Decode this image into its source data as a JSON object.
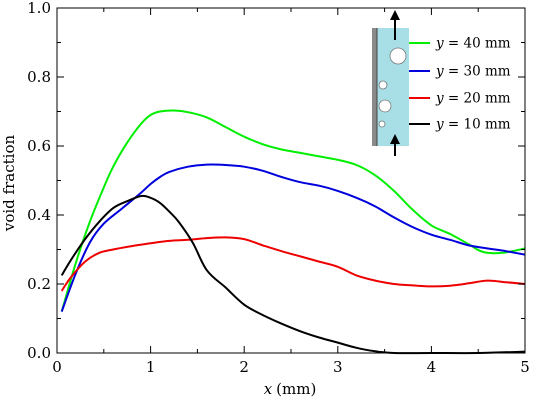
{
  "chart_data": {
    "type": "line",
    "xlabel_var": "x",
    "xlabel_unit": "(mm)",
    "ylabel": "void fraction",
    "xlim": [
      0,
      5
    ],
    "ylim": [
      0,
      1.0
    ],
    "xticks": [
      0,
      1,
      2,
      3,
      4,
      5
    ],
    "yticks": [
      0.0,
      0.2,
      0.4,
      0.6,
      0.8,
      1.0
    ],
    "xtick_labels": [
      "0",
      "1",
      "2",
      "3",
      "4",
      "5"
    ],
    "ytick_labels": [
      "0.0",
      "0.2",
      "0.4",
      "0.6",
      "0.8",
      "1.0"
    ],
    "grid": false,
    "legend_position": "top-right",
    "legend_var": "y",
    "series": [
      {
        "name": "40 mm",
        "color": "#00ee00",
        "points": [
          [
            0.05,
            0.12
          ],
          [
            0.2,
            0.26
          ],
          [
            0.35,
            0.38
          ],
          [
            0.5,
            0.48
          ],
          [
            0.6,
            0.54
          ],
          [
            0.75,
            0.61
          ],
          [
            0.9,
            0.665
          ],
          [
            1.0,
            0.69
          ],
          [
            1.1,
            0.7
          ],
          [
            1.25,
            0.703
          ],
          [
            1.4,
            0.698
          ],
          [
            1.6,
            0.683
          ],
          [
            1.8,
            0.655
          ],
          [
            2.0,
            0.627
          ],
          [
            2.2,
            0.605
          ],
          [
            2.4,
            0.59
          ],
          [
            2.6,
            0.58
          ],
          [
            2.8,
            0.57
          ],
          [
            3.0,
            0.56
          ],
          [
            3.2,
            0.545
          ],
          [
            3.4,
            0.515
          ],
          [
            3.6,
            0.47
          ],
          [
            3.8,
            0.415
          ],
          [
            4.0,
            0.37
          ],
          [
            4.2,
            0.345
          ],
          [
            4.4,
            0.315
          ],
          [
            4.55,
            0.293
          ],
          [
            4.75,
            0.29
          ],
          [
            5.0,
            0.303
          ]
        ]
      },
      {
        "name": "30 mm",
        "color": "#0000dd",
        "points": [
          [
            0.05,
            0.12
          ],
          [
            0.2,
            0.23
          ],
          [
            0.35,
            0.32
          ],
          [
            0.5,
            0.375
          ],
          [
            0.7,
            0.42
          ],
          [
            0.9,
            0.465
          ],
          [
            1.0,
            0.49
          ],
          [
            1.1,
            0.51
          ],
          [
            1.2,
            0.525
          ],
          [
            1.4,
            0.54
          ],
          [
            1.6,
            0.546
          ],
          [
            1.8,
            0.545
          ],
          [
            2.0,
            0.54
          ],
          [
            2.2,
            0.528
          ],
          [
            2.4,
            0.51
          ],
          [
            2.6,
            0.495
          ],
          [
            2.8,
            0.485
          ],
          [
            3.0,
            0.47
          ],
          [
            3.2,
            0.45
          ],
          [
            3.4,
            0.425
          ],
          [
            3.6,
            0.393
          ],
          [
            3.8,
            0.365
          ],
          [
            4.0,
            0.343
          ],
          [
            4.2,
            0.328
          ],
          [
            4.4,
            0.312
          ],
          [
            4.6,
            0.303
          ],
          [
            4.8,
            0.295
          ],
          [
            5.0,
            0.285
          ]
        ]
      },
      {
        "name": "20 mm",
        "color": "#ee0000",
        "points": [
          [
            0.05,
            0.18
          ],
          [
            0.15,
            0.22
          ],
          [
            0.3,
            0.265
          ],
          [
            0.45,
            0.29
          ],
          [
            0.6,
            0.3
          ],
          [
            0.8,
            0.31
          ],
          [
            1.0,
            0.318
          ],
          [
            1.2,
            0.325
          ],
          [
            1.4,
            0.328
          ],
          [
            1.6,
            0.333
          ],
          [
            1.8,
            0.335
          ],
          [
            2.0,
            0.33
          ],
          [
            2.2,
            0.312
          ],
          [
            2.4,
            0.295
          ],
          [
            2.6,
            0.28
          ],
          [
            2.8,
            0.265
          ],
          [
            3.0,
            0.25
          ],
          [
            3.2,
            0.225
          ],
          [
            3.4,
            0.21
          ],
          [
            3.6,
            0.2
          ],
          [
            3.8,
            0.196
          ],
          [
            4.0,
            0.193
          ],
          [
            4.2,
            0.195
          ],
          [
            4.4,
            0.202
          ],
          [
            4.6,
            0.21
          ],
          [
            4.8,
            0.205
          ],
          [
            5.0,
            0.2
          ]
        ]
      },
      {
        "name": "10 mm",
        "color": "#000000",
        "points": [
          [
            0.05,
            0.225
          ],
          [
            0.15,
            0.27
          ],
          [
            0.3,
            0.33
          ],
          [
            0.45,
            0.38
          ],
          [
            0.6,
            0.42
          ],
          [
            0.75,
            0.44
          ],
          [
            0.9,
            0.455
          ],
          [
            1.0,
            0.45
          ],
          [
            1.1,
            0.435
          ],
          [
            1.2,
            0.41
          ],
          [
            1.3,
            0.38
          ],
          [
            1.45,
            0.32
          ],
          [
            1.6,
            0.24
          ],
          [
            1.8,
            0.19
          ],
          [
            2.0,
            0.14
          ],
          [
            2.2,
            0.11
          ],
          [
            2.4,
            0.085
          ],
          [
            2.6,
            0.063
          ],
          [
            2.8,
            0.045
          ],
          [
            3.0,
            0.03
          ],
          [
            3.2,
            0.015
          ],
          [
            3.4,
            0.005
          ],
          [
            3.6,
            0.0
          ],
          [
            4.0,
            0.0
          ],
          [
            4.5,
            0.0
          ],
          [
            5.0,
            0.004
          ]
        ]
      }
    ]
  }
}
